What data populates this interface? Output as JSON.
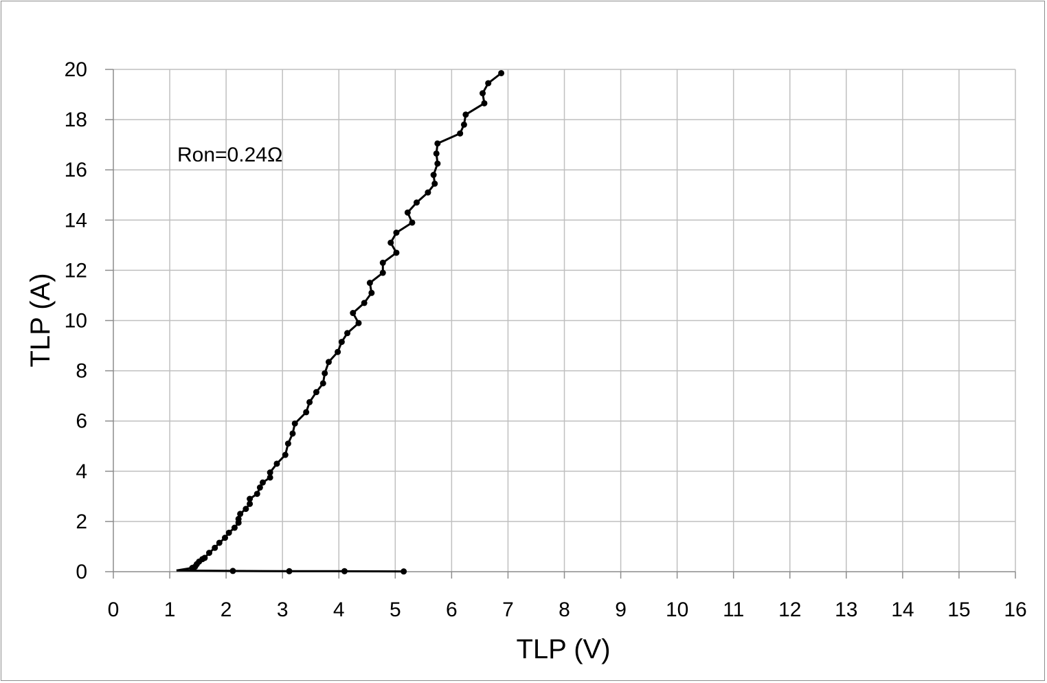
{
  "chart_data": {
    "type": "scatter",
    "xlabel": "TLP  (V)",
    "ylabel": "TLP  (A)",
    "xlim": [
      0,
      16
    ],
    "ylim": [
      0,
      20
    ],
    "xticks": [
      "0",
      "1",
      "2",
      "3",
      "4",
      "5",
      "6",
      "7",
      "8",
      "9",
      "10",
      "11",
      "12",
      "13",
      "14",
      "15",
      "16"
    ],
    "yticks": [
      "0",
      "2",
      "4",
      "6",
      "8",
      "10",
      "12",
      "14",
      "16",
      "18",
      "20"
    ],
    "grid": true,
    "legend": "none",
    "annotation": "Ron=0.24Ω",
    "line_color": "#000000",
    "series": [
      {
        "points": [
          [
            1.12,
            0.05
          ],
          [
            2.12,
            0.03
          ],
          [
            3.12,
            0.02
          ],
          [
            4.1,
            0.02
          ],
          [
            5.15,
            0.01
          ],
          [
            1.4,
            0.15
          ],
          [
            1.45,
            0.2
          ],
          [
            1.48,
            0.3
          ],
          [
            1.52,
            0.4
          ],
          [
            1.58,
            0.5
          ],
          [
            1.62,
            0.55
          ],
          [
            1.7,
            0.75
          ],
          [
            1.8,
            0.95
          ],
          [
            1.88,
            1.15
          ],
          [
            1.98,
            1.35
          ],
          [
            2.05,
            1.55
          ],
          [
            2.15,
            1.75
          ],
          [
            2.22,
            1.95
          ],
          [
            2.22,
            2.1
          ],
          [
            2.25,
            2.3
          ],
          [
            2.35,
            2.5
          ],
          [
            2.42,
            2.7
          ],
          [
            2.42,
            2.9
          ],
          [
            2.55,
            3.1
          ],
          [
            2.6,
            3.35
          ],
          [
            2.65,
            3.55
          ],
          [
            2.78,
            3.75
          ],
          [
            2.78,
            3.95
          ],
          [
            2.9,
            4.3
          ],
          [
            3.05,
            4.65
          ],
          [
            3.1,
            5.1
          ],
          [
            3.18,
            5.5
          ],
          [
            3.22,
            5.9
          ],
          [
            3.42,
            6.35
          ],
          [
            3.48,
            6.75
          ],
          [
            3.6,
            7.15
          ],
          [
            3.72,
            7.5
          ],
          [
            3.75,
            7.9
          ],
          [
            3.82,
            8.35
          ],
          [
            3.98,
            8.75
          ],
          [
            4.05,
            9.15
          ],
          [
            4.15,
            9.5
          ],
          [
            4.35,
            9.9
          ],
          [
            4.25,
            10.3
          ],
          [
            4.45,
            10.7
          ],
          [
            4.58,
            11.1
          ],
          [
            4.55,
            11.5
          ],
          [
            4.78,
            11.9
          ],
          [
            4.78,
            12.3
          ],
          [
            5.02,
            12.7
          ],
          [
            4.92,
            13.1
          ],
          [
            5.02,
            13.5
          ],
          [
            5.3,
            13.9
          ],
          [
            5.22,
            14.3
          ],
          [
            5.38,
            14.7
          ],
          [
            5.58,
            15.1
          ],
          [
            5.7,
            15.45
          ],
          [
            5.68,
            15.8
          ],
          [
            5.75,
            16.25
          ],
          [
            5.73,
            16.65
          ],
          [
            5.75,
            17.05
          ],
          [
            6.15,
            17.45
          ],
          [
            6.22,
            17.8
          ],
          [
            6.25,
            18.2
          ],
          [
            6.58,
            18.65
          ],
          [
            6.55,
            19.05
          ],
          [
            6.65,
            19.45
          ],
          [
            6.88,
            19.85
          ]
        ]
      }
    ]
  }
}
